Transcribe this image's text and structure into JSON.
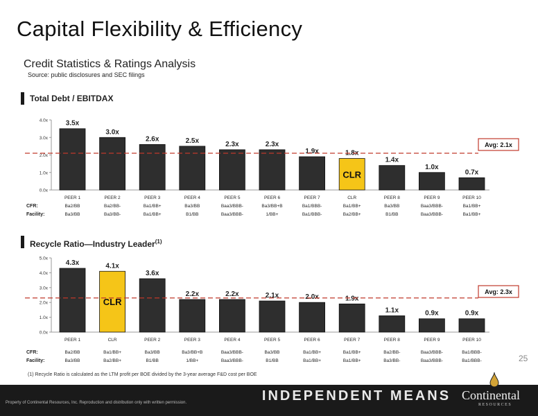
{
  "page": {
    "title": "Capital Flexibility & Efficiency",
    "subtitle": "Credit Statistics & Ratings Analysis",
    "source": "Source: public disclosures and SEC filings",
    "page_number": "25",
    "footnote": "(1) Recycle Ratio is calculated as the LTM profit per BOE divided by the 3-year average F&D cost per BOE",
    "copyright": "Property of Continental Resources, Inc. Reproduction and distribution only with written permission.",
    "tagline": "INDEPENDENT MEANS",
    "logo": "Continental",
    "logo_sub": "RESOURCES"
  },
  "colors": {
    "bar": "#2e2e2e",
    "highlight": "#f5c518",
    "avg_line": "#c0392b",
    "avg_box": "#c0392b",
    "footer": "#1a1a1a"
  },
  "chart_data": [
    {
      "type": "bar",
      "title": "Total Debt / EBITDAX",
      "categories": [
        "PEER 1",
        "PEER 2",
        "PEER 3",
        "PEER 4",
        "PEER 5",
        "PEER 6",
        "PEER 7",
        "CLR",
        "PEER 8",
        "PEER 9",
        "PEER 10"
      ],
      "values": [
        3.5,
        3.0,
        2.6,
        2.5,
        2.3,
        2.3,
        1.9,
        1.8,
        1.4,
        1.0,
        0.7
      ],
      "data_labels": [
        "3.5x",
        "3.0x",
        "2.6x",
        "2.5x",
        "2.3x",
        "2.3x",
        "1.9x",
        "1.8x",
        "1.4x",
        "1.0x",
        "0.7x"
      ],
      "highlight": "CLR",
      "highlight_label": "CLR",
      "average": 2.1,
      "average_label": "Avg: 2.1x",
      "ylim": [
        0,
        4
      ],
      "yticks": [
        "0.0x",
        "1.0x",
        "2.0x",
        "3.0x",
        "4.0x"
      ],
      "grid": false,
      "ratings": {
        "row_labels": [
          "CFR:",
          "Facility:"
        ],
        "cfr": [
          "Ba2/BB",
          "Ba2/BB-",
          "Ba1/BB+",
          "Ba3/BB",
          "Baa3/BBB-",
          "Ba3/BB+B",
          "Ba1/BBB-",
          "Ba1/BB+",
          "Ba3/BB",
          "Baa3/BBB-",
          "Ba1/BB+"
        ],
        "facility": [
          "Ba3/BB",
          "Ba3/BB-",
          "Ba1/BB+",
          "B1/BB",
          "Baa3/BBB-",
          "1/BB+",
          "Ba1/BBB-",
          "Ba2/BB+",
          "B1/BB",
          "Baa3/BBB-",
          "Ba1/BB+"
        ]
      }
    },
    {
      "type": "bar",
      "title": "Recycle Ratio—Industry Leader",
      "title_sup": "(1)",
      "categories": [
        "PEER 1",
        "CLR",
        "PEER 2",
        "PEER 3",
        "PEER 4",
        "PEER 5",
        "PEER 6",
        "PEER 7",
        "PEER 8",
        "PEER 9",
        "PEER 10"
      ],
      "values": [
        4.3,
        4.1,
        3.6,
        2.2,
        2.2,
        2.1,
        2.0,
        1.9,
        1.1,
        0.9,
        0.9
      ],
      "data_labels": [
        "4.3x",
        "4.1x",
        "3.6x",
        "2.2x",
        "2.2x",
        "2.1x",
        "2.0x",
        "1.9x",
        "1.1x",
        "0.9x",
        "0.9x"
      ],
      "highlight": "CLR",
      "highlight_label": "CLR",
      "average": 2.3,
      "average_label": "Avg: 2.3x",
      "ylim": [
        0,
        5
      ],
      "yticks": [
        "0.0x",
        "1.0x",
        "2.0x",
        "3.0x",
        "4.0x",
        "5.0x"
      ],
      "grid": false,
      "ratings": {
        "row_labels": [
          "CFR:",
          "Facility:"
        ],
        "cfr": [
          "Ba2/BB",
          "Ba1/BB+",
          "Ba3/BB",
          "Ba3/BB+B",
          "Baa3/BBB-",
          "Ba3/BB",
          "Ba1/BB+",
          "Ba1/BB+",
          "Ba2/BB-",
          "Baa3/BBB-",
          "Ba1/BBB-"
        ],
        "facility": [
          "Ba3/BB",
          "Ba2/BB+",
          "B1/BB",
          "1/BB+",
          "Baa3/BBB-",
          "B1/BB",
          "Ba1/BB+",
          "Ba1/BB+",
          "Ba3/BB-",
          "Baa3/BBB-",
          "Ba1/BBB-"
        ]
      }
    }
  ]
}
